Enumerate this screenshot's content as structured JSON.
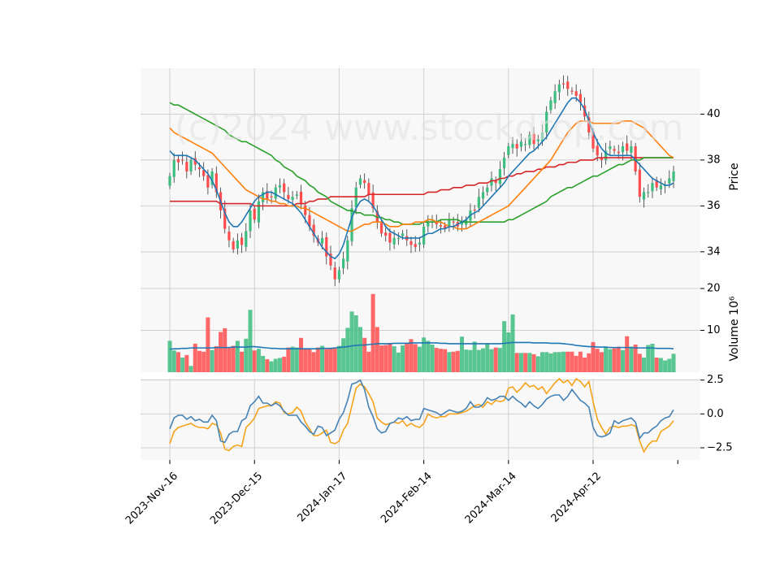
{
  "chart_data": {
    "type": "candlestick",
    "watermark": "(c)2024 www.stockdrop.com",
    "x_tick_labels": [
      "2023-Nov-16",
      "2023-Dec-15",
      "2024-Jan-17",
      "2024-Feb-14",
      "2024-Mar-14",
      "2024-Apr-12"
    ],
    "x_tick_indices": [
      0,
      20,
      40,
      60,
      80,
      100
    ],
    "n_bars": 120,
    "grid": true,
    "colors": {
      "up": "#3dbd80",
      "down": "#ff4d4d",
      "ma_short": "#1f77b4",
      "ma_mid": "#ff7f0e",
      "ma_long": "#2ca02c",
      "ma_longest": "#d62728",
      "volume_ma": "#1f77b4",
      "osc_a": "#4682b4",
      "osc_b": "#f5a31a",
      "panel_bg": "#f8f8f8",
      "grid": "#cfcfcf"
    },
    "price_panel": {
      "ylabel": "Price",
      "ylim": [
        32.4,
        42.0
      ],
      "yticks": [
        34,
        36,
        38,
        40
      ],
      "close": [
        37.3,
        38.0,
        37.9,
        38.0,
        37.5,
        38.0,
        37.8,
        37.6,
        37.3,
        36.8,
        37.5,
        36.6,
        35.8,
        35.0,
        34.5,
        34.1,
        34.5,
        34.3,
        34.9,
        35.8,
        35.4,
        36.2,
        36.6,
        36.3,
        36.4,
        36.8,
        36.9,
        36.6,
        36.3,
        36.4,
        36.5,
        36.1,
        35.6,
        35.1,
        34.7,
        34.4,
        34.6,
        33.8,
        33.4,
        32.8,
        33.2,
        33.7,
        34.5,
        35.9,
        36.8,
        37.2,
        37.0,
        36.5,
        35.9,
        35.3,
        34.8,
        34.7,
        34.4,
        34.6,
        34.6,
        34.8,
        34.5,
        34.3,
        34.2,
        34.4,
        35.1,
        35.3,
        35.4,
        35.2,
        35.1,
        35.0,
        35.4,
        35.3,
        35.1,
        35.3,
        35.4,
        35.8,
        35.8,
        36.4,
        36.6,
        36.8,
        37.2,
        37.0,
        37.6,
        38.1,
        38.6,
        38.7,
        38.5,
        38.8,
        38.7,
        39.1,
        38.7,
        38.9,
        39.2,
        40.1,
        40.6,
        41.0,
        41.3,
        41.3,
        41.1,
        41.0,
        40.8,
        40.5,
        39.9,
        39.2,
        38.5,
        38.2,
        38.0,
        38.4,
        38.6,
        38.4,
        38.3,
        38.6,
        38.4,
        38.6,
        37.5,
        36.4,
        36.6,
        36.6,
        37.0,
        36.8,
        36.9,
        36.9,
        37.2,
        37.5
      ],
      "ma_short": [
        38.4,
        38.2,
        38.2,
        38.2,
        38.2,
        38.1,
        38.0,
        37.8,
        37.6,
        37.4,
        37.1,
        36.7,
        36.2,
        35.7,
        35.3,
        35.1,
        35.1,
        35.3,
        35.6,
        35.9,
        36.2,
        36.4,
        36.5,
        36.6,
        36.6,
        36.5,
        36.4,
        36.3,
        36.2,
        36.1,
        35.9,
        35.7,
        35.4,
        35.1,
        34.8,
        34.5,
        34.2,
        34.0,
        33.8,
        33.7,
        33.9,
        34.3,
        34.9,
        35.5,
        35.9,
        36.2,
        36.3,
        36.2,
        36.0,
        35.7,
        35.4,
        35.1,
        34.9,
        34.8,
        34.7,
        34.6,
        34.6,
        34.6,
        34.6,
        34.6,
        34.7,
        34.8,
        34.8,
        34.9,
        35.0,
        35.0,
        35.1,
        35.1,
        35.2,
        35.3,
        35.4,
        35.6,
        35.7,
        35.8,
        36.0,
        36.2,
        36.4,
        36.6,
        36.8,
        37.0,
        37.3,
        37.5,
        37.7,
        37.9,
        38.1,
        38.3,
        38.4,
        38.6,
        38.8,
        39.0,
        39.3,
        39.6,
        39.9,
        40.2,
        40.5,
        40.7,
        40.7,
        40.5,
        40.2,
        39.7,
        39.2,
        38.8,
        38.5,
        38.3,
        38.2,
        38.2,
        38.2,
        38.2,
        38.2,
        38.2,
        38.0,
        37.8,
        37.6,
        37.4,
        37.2,
        37.1,
        37.0,
        36.9,
        36.9,
        37.0
      ],
      "ma_mid": [
        39.4,
        39.2,
        39.1,
        39.0,
        38.9,
        38.8,
        38.7,
        38.6,
        38.5,
        38.4,
        38.3,
        38.1,
        37.9,
        37.7,
        37.5,
        37.3,
        37.1,
        36.9,
        36.7,
        36.6,
        36.5,
        36.4,
        36.3,
        36.3,
        36.2,
        36.2,
        36.1,
        36.1,
        36.0,
        36.0,
        36.0,
        35.9,
        35.9,
        35.8,
        35.7,
        35.6,
        35.5,
        35.4,
        35.3,
        35.2,
        35.1,
        35.0,
        34.9,
        34.9,
        35.0,
        35.1,
        35.2,
        35.2,
        35.3,
        35.3,
        35.3,
        35.2,
        35.1,
        35.1,
        35.1,
        35.2,
        35.2,
        35.2,
        35.3,
        35.3,
        35.3,
        35.4,
        35.4,
        35.3,
        35.3,
        35.2,
        35.1,
        35.1,
        35.0,
        35.0,
        35.0,
        35.1,
        35.2,
        35.3,
        35.4,
        35.5,
        35.6,
        35.7,
        35.8,
        35.9,
        36.0,
        36.2,
        36.4,
        36.6,
        36.8,
        37.0,
        37.2,
        37.4,
        37.6,
        37.8,
        38.0,
        38.3,
        38.6,
        38.9,
        39.2,
        39.4,
        39.6,
        39.7,
        39.7,
        39.7,
        39.6,
        39.6,
        39.6,
        39.6,
        39.6,
        39.6,
        39.6,
        39.7,
        39.7,
        39.7,
        39.6,
        39.5,
        39.4,
        39.2,
        39.0,
        38.8,
        38.6,
        38.4,
        38.2,
        38.1
      ],
      "ma_long": [
        40.5,
        40.4,
        40.4,
        40.3,
        40.2,
        40.1,
        40.0,
        39.9,
        39.8,
        39.7,
        39.6,
        39.5,
        39.4,
        39.3,
        39.1,
        39.0,
        38.9,
        38.8,
        38.8,
        38.7,
        38.6,
        38.5,
        38.4,
        38.3,
        38.2,
        38.0,
        37.9,
        37.7,
        37.6,
        37.5,
        37.3,
        37.2,
        37.1,
        36.9,
        36.8,
        36.6,
        36.5,
        36.4,
        36.2,
        36.1,
        36.0,
        35.9,
        35.8,
        35.8,
        35.7,
        35.7,
        35.6,
        35.6,
        35.6,
        35.5,
        35.5,
        35.4,
        35.4,
        35.3,
        35.3,
        35.2,
        35.2,
        35.2,
        35.2,
        35.2,
        35.3,
        35.3,
        35.3,
        35.3,
        35.4,
        35.4,
        35.4,
        35.4,
        35.4,
        35.3,
        35.3,
        35.3,
        35.3,
        35.3,
        35.3,
        35.3,
        35.3,
        35.3,
        35.3,
        35.3,
        35.4,
        35.4,
        35.5,
        35.6,
        35.7,
        35.8,
        35.9,
        36.0,
        36.1,
        36.2,
        36.4,
        36.5,
        36.6,
        36.7,
        36.8,
        36.8,
        36.9,
        37.0,
        37.1,
        37.2,
        37.3,
        37.3,
        37.4,
        37.5,
        37.6,
        37.7,
        37.8,
        37.8,
        37.9,
        38.0,
        38.0,
        38.0,
        38.1,
        38.1,
        38.1,
        38.1,
        38.1,
        38.1,
        38.1,
        38.1
      ],
      "ma_longest": [
        36.2,
        36.2,
        36.2,
        36.2,
        36.2,
        36.2,
        36.2,
        36.2,
        36.2,
        36.2,
        36.2,
        36.2,
        36.1,
        36.1,
        36.1,
        36.1,
        36.1,
        36.1,
        36.1,
        36.1,
        36.0,
        36.0,
        36.0,
        36.0,
        36.0,
        36.0,
        36.0,
        36.0,
        36.0,
        36.0,
        36.1,
        36.1,
        36.1,
        36.2,
        36.2,
        36.3,
        36.3,
        36.3,
        36.4,
        36.4,
        36.4,
        36.4,
        36.4,
        36.4,
        36.4,
        36.4,
        36.4,
        36.5,
        36.5,
        36.5,
        36.5,
        36.5,
        36.5,
        36.5,
        36.5,
        36.5,
        36.5,
        36.5,
        36.5,
        36.5,
        36.5,
        36.6,
        36.6,
        36.6,
        36.7,
        36.7,
        36.7,
        36.8,
        36.8,
        36.8,
        36.9,
        36.9,
        36.9,
        37.0,
        37.0,
        37.0,
        37.1,
        37.1,
        37.2,
        37.2,
        37.3,
        37.3,
        37.4,
        37.4,
        37.5,
        37.5,
        37.5,
        37.6,
        37.6,
        37.7,
        37.7,
        37.7,
        37.8,
        37.8,
        37.9,
        37.9,
        37.9,
        38.0,
        38.0,
        38.0,
        38.0,
        38.1,
        38.1,
        38.1,
        38.1,
        38.1,
        38.1,
        38.1,
        38.1,
        38.1,
        38.1,
        38.1,
        38.1,
        38.1,
        38.1,
        38.1,
        38.1,
        38.1,
        38.1,
        38.1
      ]
    },
    "volume_panel": {
      "ylabel": "Volume  10⁶",
      "ylim": [
        0,
        20
      ],
      "yticks": [
        10,
        20
      ],
      "values": [
        7.5,
        5.2,
        4.8,
        3.5,
        4.1,
        1.5,
        6.8,
        5.1,
        4.9,
        13.1,
        5.3,
        6.2,
        9.6,
        10.5,
        5.8,
        6.3,
        7.5,
        4.9,
        8.0,
        14.9,
        5.2,
        5.6,
        3.9,
        3.1,
        2.6,
        3.2,
        3.4,
        3.7,
        5.9,
        6.1,
        5.9,
        8.2,
        5.7,
        5.7,
        4.8,
        5.9,
        6.3,
        5.5,
        5.8,
        5.9,
        6.3,
        8.1,
        10.6,
        14.5,
        13.6,
        10.8,
        8.2,
        4.9,
        18.7,
        10.8,
        6.4,
        6.5,
        7.0,
        6.2,
        4.7,
        6.4,
        6.8,
        7.9,
        6.7,
        6.1,
        8.3,
        7.5,
        6.6,
        5.8,
        5.6,
        5.5,
        4.8,
        4.9,
        5.1,
        8.5,
        5.4,
        5.3,
        7.3,
        5.3,
        5.7,
        6.9,
        5.5,
        5.9,
        5.8,
        12.2,
        9.5,
        13.8,
        4.6,
        4.6,
        4.6,
        4.6,
        4.3,
        3.8,
        4.8,
        4.8,
        4.5,
        4.8,
        4.8,
        4.9,
        4.9,
        4.9,
        3.9,
        4.9,
        3.5,
        4.5,
        7.2,
        5.6,
        4.8,
        6.0,
        5.5,
        5.7,
        6.1,
        5.3,
        8.6,
        6.1,
        6.6,
        4.4,
        3.5,
        6.5,
        6.8,
        3.5,
        3.4,
        2.8,
        3.2,
        4.4
      ],
      "ma": [
        5.5,
        5.6,
        5.6,
        5.7,
        5.7,
        5.8,
        5.8,
        5.8,
        5.8,
        5.8,
        5.8,
        5.9,
        5.9,
        5.9,
        5.9,
        6.0,
        6.0,
        6.0,
        6.0,
        6.1,
        6.1,
        6.0,
        5.9,
        5.8,
        5.7,
        5.7,
        5.6,
        5.6,
        5.6,
        5.6,
        5.6,
        5.6,
        5.6,
        5.6,
        5.6,
        5.6,
        5.7,
        5.7,
        5.7,
        5.8,
        5.9,
        6.0,
        6.1,
        6.3,
        6.4,
        6.5,
        6.5,
        6.6,
        6.7,
        6.8,
        6.8,
        6.8,
        6.8,
        6.9,
        6.9,
        6.9,
        6.9,
        7.0,
        7.0,
        7.0,
        7.0,
        7.0,
        7.0,
        7.0,
        6.9,
        6.9,
        6.8,
        6.8,
        6.8,
        6.8,
        6.8,
        6.8,
        6.8,
        6.8,
        6.8,
        6.8,
        6.8,
        6.8,
        6.8,
        6.9,
        7.0,
        7.1,
        7.1,
        7.1,
        7.1,
        7.1,
        7.0,
        7.0,
        7.0,
        7.0,
        6.9,
        6.9,
        6.9,
        6.8,
        6.7,
        6.6,
        6.4,
        6.3,
        6.2,
        6.1,
        6.1,
        6.0,
        6.0,
        6.0,
        5.9,
        5.9,
        5.9,
        5.9,
        5.9,
        5.9,
        5.8,
        5.8,
        5.8,
        5.8,
        5.8,
        5.7,
        5.7,
        5.7,
        5.7,
        5.6
      ]
    },
    "oscillator_panel": {
      "ylim": [
        -3.4,
        2.6
      ],
      "yticks": [
        -2.5,
        0.0,
        2.5
      ],
      "ytick_labels": [
        "−2.5",
        "0.0",
        "2.5"
      ],
      "series_a": [
        -1.1,
        -0.3,
        -0.1,
        -0.1,
        -0.4,
        -0.2,
        -0.5,
        -0.4,
        -0.6,
        -0.6,
        -0.1,
        -0.5,
        -2.0,
        -2.1,
        -1.5,
        -1.3,
        -1.3,
        -0.5,
        -0.3,
        0.6,
        0.9,
        1.3,
        0.8,
        0.8,
        0.6,
        0.8,
        0.6,
        0.2,
        -0.1,
        -0.1,
        -0.1,
        -0.6,
        -0.9,
        -1.3,
        -1.5,
        -0.9,
        -1.0,
        -1.6,
        -1.4,
        -1.2,
        -0.4,
        0.1,
        1.0,
        2.2,
        2.3,
        2.5,
        1.8,
        0.5,
        -0.2,
        -1.1,
        -1.4,
        -1.3,
        -0.7,
        -0.6,
        -0.3,
        -0.4,
        -0.2,
        -0.5,
        -0.4,
        -0.4,
        0.4,
        0.3,
        0.2,
        0.1,
        -0.1,
        0.1,
        0.3,
        0.2,
        0.1,
        0.2,
        0.4,
        0.9,
        0.5,
        0.5,
        0.7,
        1.2,
        1.0,
        1.1,
        1.3,
        1.3,
        1.0,
        1.3,
        1.0,
        0.8,
        0.5,
        0.9,
        0.6,
        0.4,
        0.7,
        1.1,
        1.3,
        1.4,
        1.4,
        1.0,
        1.3,
        1.8,
        1.4,
        1.0,
        0.8,
        0.5,
        -1.0,
        -1.6,
        -1.7,
        -1.6,
        -1.4,
        -0.5,
        -0.7,
        -0.5,
        -0.4,
        -0.3,
        -0.6,
        -1.8,
        -1.4,
        -1.4,
        -1.1,
        -0.9,
        -0.5,
        -0.3,
        -0.2,
        0.3
      ],
      "series_b": [
        -2.2,
        -1.3,
        -1.0,
        -0.9,
        -0.8,
        -0.7,
        -0.9,
        -1.0,
        -1.0,
        -1.1,
        -0.7,
        -0.8,
        -1.4,
        -2.6,
        -2.7,
        -2.4,
        -2.3,
        -2.4,
        -1.0,
        -0.7,
        -0.3,
        0.4,
        0.5,
        0.6,
        0.6,
        0.9,
        0.8,
        0.1,
        0.0,
        0.1,
        0.5,
        0.2,
        -0.6,
        -1.1,
        -1.6,
        -1.6,
        -1.4,
        -1.2,
        -2.1,
        -2.2,
        -2.0,
        -1.2,
        -0.7,
        0.6,
        1.9,
        2.2,
        2.0,
        1.5,
        0.9,
        -0.3,
        -0.6,
        -0.8,
        -0.7,
        -0.6,
        -0.7,
        -0.5,
        -0.9,
        -0.7,
        -0.9,
        -1.0,
        -0.7,
        0.0,
        -0.2,
        -0.3,
        -0.2,
        -0.2,
        0.0,
        0.0,
        0.0,
        0.1,
        0.2,
        0.4,
        0.6,
        0.7,
        0.5,
        0.9,
        0.7,
        1.0,
        0.9,
        1.0,
        1.9,
        2.0,
        1.6,
        1.9,
        2.3,
        2.0,
        2.1,
        1.8,
        2.0,
        1.5,
        1.9,
        2.3,
        2.6,
        2.3,
        2.5,
        2.1,
        2.6,
        2.4,
        2.0,
        2.4,
        0.9,
        -0.4,
        -1.0,
        -1.5,
        -1.0,
        -0.9,
        -1.0,
        -0.9,
        -0.9,
        -0.8,
        -0.9,
        -2.0,
        -2.8,
        -2.3,
        -2.0,
        -2.0,
        -1.3,
        -1.1,
        -0.9,
        -0.5
      ]
    }
  }
}
